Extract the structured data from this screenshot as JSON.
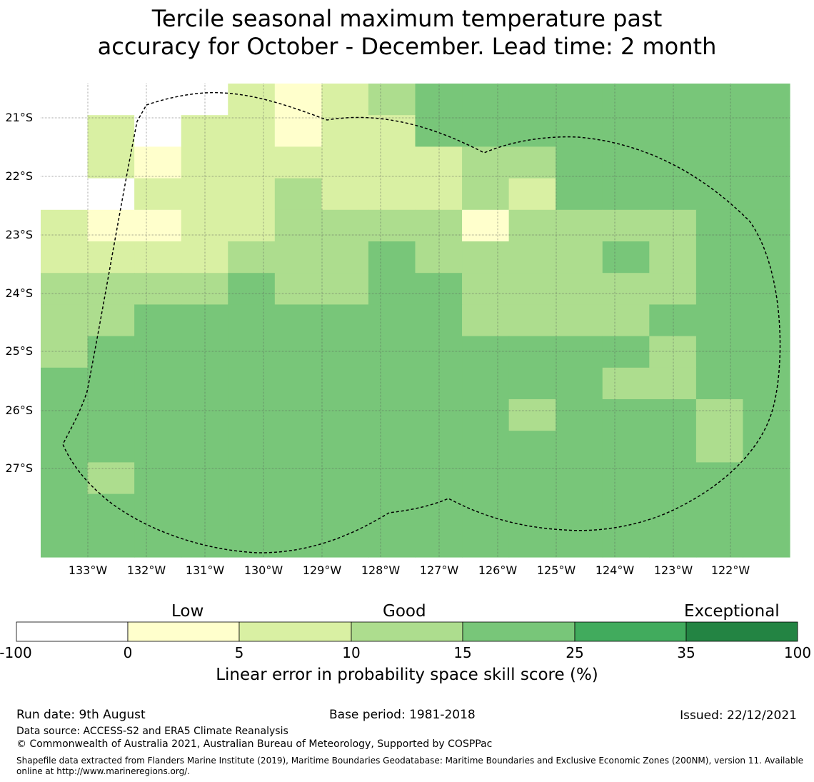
{
  "title": {
    "line1": "Tercile seasonal maximum temperature past",
    "line2": "accuracy for October - December. Lead time: 2 month"
  },
  "map": {
    "lat_labels": [
      "21°S",
      "22°S",
      "23°S",
      "24°S",
      "25°S",
      "26°S",
      "27°S"
    ],
    "lon_labels": [
      "133°W",
      "132°W",
      "131°W",
      "130°W",
      "129°W",
      "128°W",
      "127°W",
      "126°W",
      "125°W",
      "124°W",
      "123°W",
      "122°W"
    ],
    "grid_rows": [
      "01111222333333333",
      "01111222333333333",
      "00111222333333333",
      "00011222333333333",
      "00011222333333333",
      "00011222333333333",
      "00011222333333333",
      "00011222333333333",
      "00011222333333333",
      "00011222333333333",
      "00011222333333333",
      "00011222333333333",
      "00011222333333333",
      "00011222333333333"
    ],
    "cells": [
      "FFFFAAAABBBBCCDDDDEEEEEEEE",
      "FFFFAAAABBBBCCDDDDEEEEEEEE"
    ],
    "grid": [
      [
        9,
        9,
        9,
        9,
        1,
        0,
        1,
        2,
        3,
        4,
        4,
        4,
        4,
        4,
        4,
        4
      ],
      [
        9,
        1,
        9,
        1,
        1,
        0,
        1,
        1,
        3,
        3,
        3,
        3,
        4,
        4,
        4,
        4
      ],
      [
        9,
        1,
        0,
        1,
        1,
        1,
        1,
        1,
        1,
        2,
        2,
        3,
        3,
        4,
        3,
        4
      ],
      [
        9,
        9,
        1,
        1,
        1,
        2,
        1,
        1,
        1,
        2,
        1,
        3,
        3,
        3,
        3,
        3
      ],
      [
        1,
        0,
        0,
        1,
        1,
        2,
        2,
        2,
        2,
        0,
        2,
        2,
        2,
        2,
        3,
        3
      ],
      [
        1,
        1,
        1,
        1,
        2,
        2,
        2,
        3,
        2,
        2,
        2,
        2,
        3,
        2,
        3,
        3
      ],
      [
        2,
        2,
        2,
        2,
        3,
        2,
        2,
        4,
        3,
        2,
        2,
        2,
        2,
        2,
        3,
        3
      ],
      [
        2,
        2,
        3,
        4,
        3,
        3,
        3,
        3,
        3,
        2,
        2,
        2,
        2,
        3,
        4,
        4
      ],
      [
        2,
        3,
        3,
        4,
        4,
        4,
        3,
        3,
        3,
        3,
        3,
        3,
        3,
        2,
        3,
        3
      ],
      [
        3,
        4,
        4,
        4,
        3,
        4,
        4,
        3,
        3,
        3,
        3,
        4,
        2,
        2,
        3,
        3
      ],
      [
        3,
        3,
        4,
        4,
        4,
        4,
        4,
        4,
        4,
        4,
        2,
        3,
        4,
        3,
        2,
        3
      ],
      [
        4,
        3,
        4,
        4,
        3,
        4,
        4,
        4,
        4,
        4,
        3,
        3,
        3,
        4,
        2,
        3
      ],
      [
        4,
        2,
        3,
        4,
        3,
        4,
        3,
        3,
        4,
        4,
        4,
        4,
        4,
        3,
        3,
        4
      ],
      [
        4,
        3,
        3,
        4,
        3,
        3,
        3,
        4,
        4,
        4,
        4,
        4,
        4,
        4,
        4,
        4
      ],
      [
        4,
        4,
        3,
        3,
        3,
        3,
        4,
        4,
        4,
        4,
        4,
        4,
        4,
        3,
        4,
        4
      ]
    ],
    "colors": [
      "#ffffcc",
      "#d9f0a3",
      "#addd8e",
      "#78c679",
      "#78c679",
      "#41ab5d",
      "#238443",
      "#ffffff",
      "#ffffff",
      "#ffffff"
    ]
  },
  "colorbar": {
    "categories": [
      "Low",
      "Good",
      "Exceptional"
    ],
    "ticks": [
      "-100",
      "0",
      "5",
      "10",
      "15",
      "25",
      "35",
      "100"
    ],
    "colors": [
      "#ffffff",
      "#ffffcc",
      "#d9f0a3",
      "#addd8e",
      "#78c679",
      "#41ab5d",
      "#238443"
    ],
    "label": "Linear error in probability space skill score (%)"
  },
  "footer": {
    "run_date": "Run date: 9th August",
    "base_period": "Base period: 1981-2018",
    "issued": "Issued: 22/12/2021",
    "data_source": "Data source: ACCESS-S2 and ERA5 Climate Reanalysis",
    "copyright": "© Commonwealth of Australia 2021, Australian Bureau of Meteorology, Supported by COSPPac",
    "shapefile": "Shapefile data extracted from Flanders Marine Institute (2019), Maritime Boundaries Geodatabase: Maritime Boundaries and Exclusive Economic Zones (200NM), version 11. Available online at http://www.marineregions.org/."
  }
}
